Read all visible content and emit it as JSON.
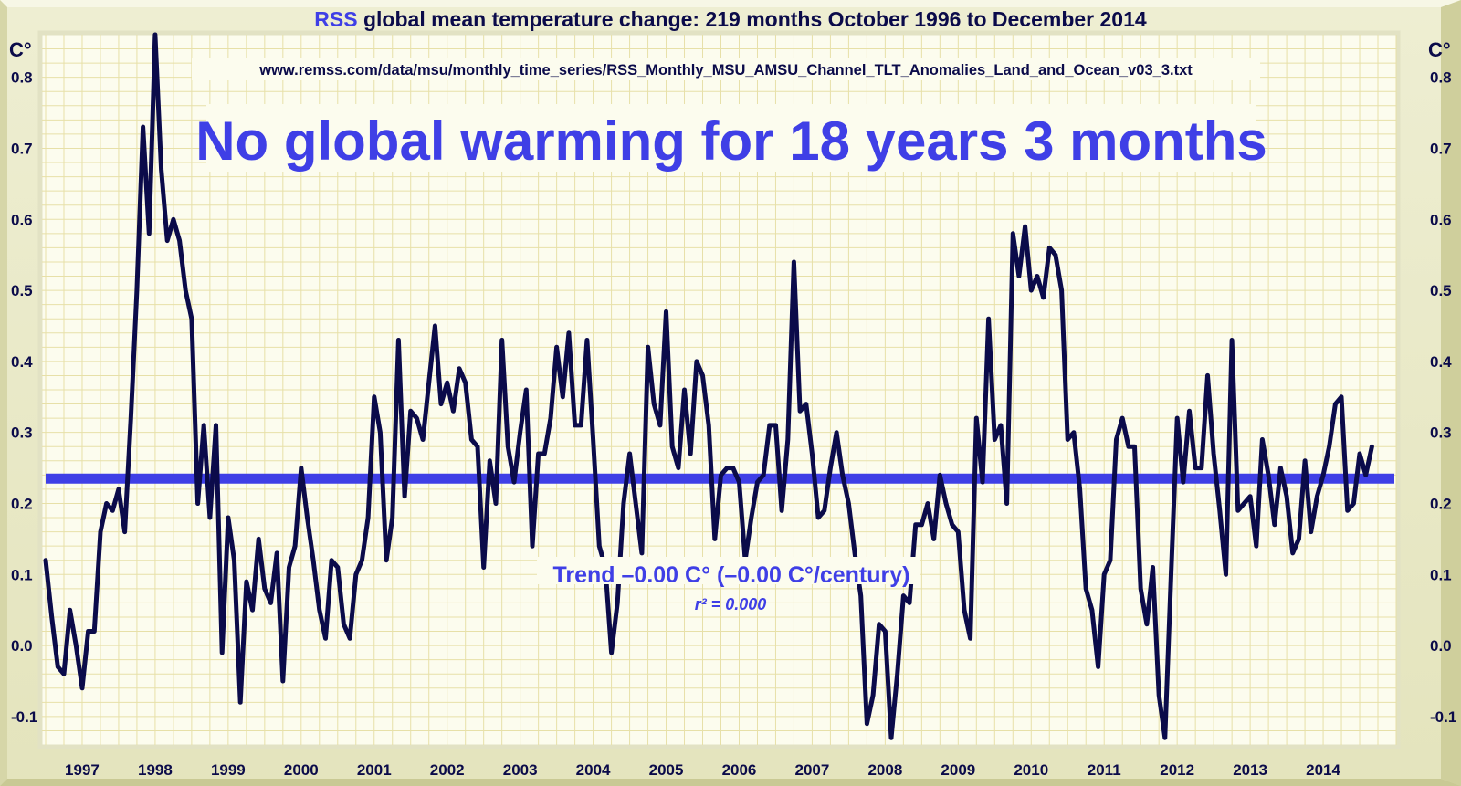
{
  "chart_data": {
    "type": "line",
    "title_accent": "RSS",
    "title_rest": " global mean temperature change: 219 months October 1996 to December 2014",
    "source_url": "www.remss.com/data/msu/monthly_time_series/RSS_Monthly_MSU_AMSU_Channel_TLT_Anomalies_Land_and_Ocean_v03_3.txt",
    "headline": "No global warming for 18 years 3 months",
    "y_unit_left": "C°",
    "y_unit_right": "C°",
    "ylim": [
      -0.14,
      0.86
    ],
    "y_ticks": [
      "0.8",
      "0.7",
      "0.6",
      "0.5",
      "0.4",
      "0.3",
      "0.2",
      "0.1",
      "0.0",
      "-0.1"
    ],
    "y_tick_values": [
      0.8,
      0.7,
      0.6,
      0.5,
      0.4,
      0.3,
      0.2,
      0.1,
      0.0,
      -0.1
    ],
    "x_ticks": [
      "1997",
      "1998",
      "1999",
      "2000",
      "2001",
      "2002",
      "2003",
      "2004",
      "2005",
      "2006",
      "2007",
      "2008",
      "2009",
      "2010",
      "2011",
      "2012",
      "2013",
      "2014"
    ],
    "x_range": [
      "1996-10",
      "2014-12"
    ],
    "grid": true,
    "trend": {
      "value": 0.235,
      "label": "Trend –0.00 C° (–0.00 C°/century)",
      "r2_label": "r² = 0.000",
      "color": "#3f3fe6"
    },
    "series": [
      {
        "color": "#0b0b4a",
        "monthly_values": [
          0.12,
          0.04,
          -0.03,
          -0.04,
          0.05,
          0.0,
          -0.06,
          0.02,
          0.02,
          0.16,
          0.2,
          0.19,
          0.22,
          0.16,
          0.32,
          0.5,
          0.73,
          0.58,
          0.86,
          0.67,
          0.57,
          0.6,
          0.57,
          0.5,
          0.46,
          0.2,
          0.31,
          0.18,
          0.31,
          -0.01,
          0.18,
          0.12,
          -0.08,
          0.09,
          0.05,
          0.15,
          0.08,
          0.06,
          0.13,
          -0.05,
          0.11,
          0.14,
          0.25,
          0.18,
          0.12,
          0.05,
          0.01,
          0.12,
          0.11,
          0.03,
          0.01,
          0.1,
          0.12,
          0.18,
          0.35,
          0.3,
          0.12,
          0.18,
          0.43,
          0.21,
          0.33,
          0.32,
          0.29,
          0.37,
          0.45,
          0.34,
          0.37,
          0.33,
          0.39,
          0.37,
          0.29,
          0.28,
          0.11,
          0.26,
          0.2,
          0.43,
          0.28,
          0.23,
          0.3,
          0.36,
          0.14,
          0.27,
          0.27,
          0.32,
          0.42,
          0.35,
          0.44,
          0.31,
          0.31,
          0.43,
          0.29,
          0.14,
          0.11,
          -0.01,
          0.06,
          0.2,
          0.27,
          0.2,
          0.13,
          0.42,
          0.34,
          0.31,
          0.47,
          0.28,
          0.25,
          0.36,
          0.27,
          0.4,
          0.38,
          0.31,
          0.15,
          0.24,
          0.25,
          0.25,
          0.23,
          0.12,
          0.18,
          0.23,
          0.24,
          0.31,
          0.31,
          0.19,
          0.29,
          0.54,
          0.33,
          0.34,
          0.27,
          0.18,
          0.19,
          0.25,
          0.3,
          0.24,
          0.2,
          0.13,
          0.07,
          -0.11,
          -0.07,
          0.03,
          0.02,
          -0.13,
          -0.04,
          0.07,
          0.06,
          0.17,
          0.17,
          0.2,
          0.15,
          0.24,
          0.2,
          0.17,
          0.16,
          0.05,
          0.01,
          0.32,
          0.23,
          0.46,
          0.29,
          0.31,
          0.2,
          0.58,
          0.52,
          0.59,
          0.5,
          0.52,
          0.49,
          0.56,
          0.55,
          0.5,
          0.29,
          0.3,
          0.22,
          0.08,
          0.05,
          -0.03,
          0.1,
          0.12,
          0.29,
          0.32,
          0.28,
          0.28,
          0.08,
          0.03,
          0.11,
          -0.07,
          -0.13,
          0.1,
          0.32,
          0.23,
          0.33,
          0.25,
          0.25,
          0.38,
          0.27,
          0.19,
          0.1,
          0.43,
          0.19,
          0.2,
          0.21,
          0.14,
          0.29,
          0.24,
          0.17,
          0.25,
          0.21,
          0.13,
          0.15,
          0.26,
          0.16,
          0.21,
          0.24,
          0.28,
          0.34,
          0.35,
          0.19,
          0.2,
          0.27,
          0.24,
          0.28
        ]
      }
    ]
  }
}
